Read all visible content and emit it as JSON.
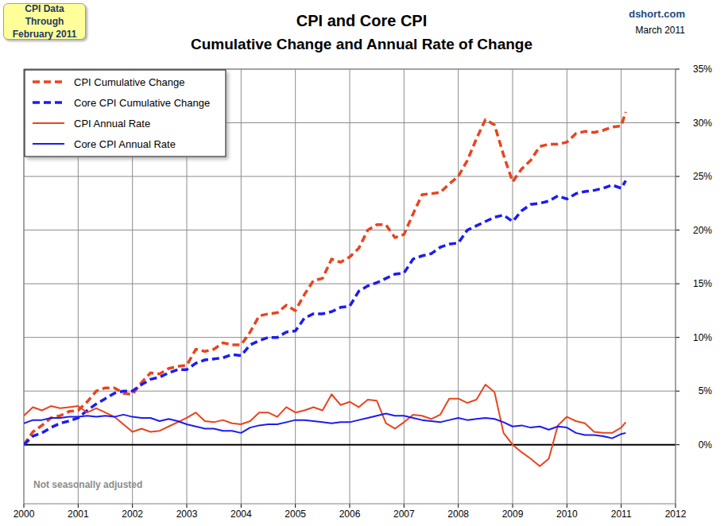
{
  "chart_data": {
    "type": "line",
    "title": "CPI and Core CPI",
    "subtitle": "Cumulative Change and Annual Rate of Change",
    "annotations": [
      "CPI Data Through February 2011",
      "dshort.com",
      "March 2011",
      "Not seasonally adjusted"
    ],
    "x": [
      2000,
      2000.167,
      2000.333,
      2000.5,
      2000.667,
      2000.833,
      2001,
      2001.167,
      2001.333,
      2001.5,
      2001.667,
      2001.833,
      2002,
      2002.167,
      2002.333,
      2002.5,
      2002.667,
      2002.833,
      2003,
      2003.167,
      2003.333,
      2003.5,
      2003.667,
      2003.833,
      2004,
      2004.167,
      2004.333,
      2004.5,
      2004.667,
      2004.833,
      2005,
      2005.167,
      2005.333,
      2005.5,
      2005.667,
      2005.833,
      2006,
      2006.167,
      2006.333,
      2006.5,
      2006.667,
      2006.833,
      2007,
      2007.167,
      2007.333,
      2007.5,
      2007.667,
      2007.833,
      2008,
      2008.167,
      2008.333,
      2008.5,
      2008.667,
      2008.833,
      2009,
      2009.167,
      2009.333,
      2009.5,
      2009.667,
      2009.833,
      2010,
      2010.167,
      2010.333,
      2010.5,
      2010.667,
      2010.833,
      2011,
      2011.083
    ],
    "series": [
      {
        "name": "CPI Cumulative Change",
        "color": "#e8441f",
        "line_style": "dashed",
        "values": [
          0,
          1.2,
          1.8,
          2.5,
          2.7,
          3.1,
          3.2,
          4.0,
          5.0,
          5.3,
          5.3,
          4.8,
          4.7,
          5.8,
          6.7,
          6.6,
          7.1,
          7.3,
          7.4,
          8.9,
          8.7,
          8.9,
          9.5,
          9.3,
          9.3,
          10.5,
          12.0,
          12.2,
          12.3,
          13.0,
          12.5,
          14.0,
          15.3,
          15.5,
          17.3,
          17.0,
          17.5,
          18.3,
          20.0,
          20.5,
          20.5,
          19.3,
          19.6,
          21.5,
          23.3,
          23.4,
          23.5,
          24.3,
          25.0,
          26.5,
          28.5,
          30.3,
          29.8,
          27.0,
          24.5,
          25.7,
          26.5,
          27.8,
          28.0,
          28.0,
          28.2,
          29.0,
          29.2,
          29.1,
          29.3,
          29.6,
          29.7,
          31.0
        ]
      },
      {
        "name": "Core CPI Cumulative Change",
        "color": "#1c1cf0",
        "line_style": "dashed",
        "values": [
          0,
          0.8,
          1.1,
          1.6,
          2.0,
          2.2,
          2.5,
          3.2,
          3.8,
          4.3,
          4.8,
          5.0,
          5.0,
          5.6,
          6.1,
          6.3,
          6.7,
          7.0,
          7.0,
          7.6,
          7.9,
          8.0,
          8.1,
          8.4,
          8.3,
          9.3,
          9.7,
          10.0,
          10.0,
          10.5,
          10.6,
          11.8,
          12.2,
          12.2,
          12.4,
          12.8,
          12.9,
          14.3,
          14.8,
          15.1,
          15.5,
          15.9,
          16.0,
          17.3,
          17.6,
          17.8,
          18.4,
          18.7,
          18.8,
          20.0,
          20.4,
          20.8,
          21.2,
          21.4,
          20.8,
          21.8,
          22.4,
          22.5,
          22.7,
          23.2,
          22.9,
          23.4,
          23.6,
          23.7,
          23.9,
          24.2,
          23.9,
          24.6
        ]
      },
      {
        "name": "CPI Annual Rate",
        "color": "#e8441f",
        "line_style": "solid",
        "values": [
          2.7,
          3.5,
          3.2,
          3.6,
          3.4,
          3.5,
          3.6,
          3.0,
          3.4,
          3.0,
          2.6,
          1.9,
          1.2,
          1.5,
          1.2,
          1.3,
          1.7,
          2.1,
          2.5,
          3.0,
          2.2,
          2.1,
          2.3,
          2.0,
          1.9,
          2.2,
          3.0,
          3.0,
          2.6,
          3.5,
          3.0,
          3.2,
          3.5,
          3.2,
          4.7,
          3.7,
          4.0,
          3.5,
          4.2,
          4.1,
          2.0,
          1.5,
          2.1,
          2.8,
          2.7,
          2.4,
          2.8,
          4.3,
          4.3,
          3.9,
          4.2,
          5.6,
          4.9,
          1.1,
          0.0,
          -0.7,
          -1.3,
          -2.0,
          -1.3,
          1.8,
          2.6,
          2.2,
          2.0,
          1.2,
          1.1,
          1.1,
          1.6,
          2.1
        ]
      },
      {
        "name": "Core CPI Annual Rate",
        "color": "#1c1cf0",
        "line_style": "solid",
        "values": [
          2.0,
          2.3,
          2.3,
          2.5,
          2.5,
          2.6,
          2.6,
          2.7,
          2.6,
          2.7,
          2.6,
          2.8,
          2.6,
          2.5,
          2.5,
          2.2,
          2.4,
          2.2,
          1.9,
          1.7,
          1.5,
          1.5,
          1.3,
          1.3,
          1.1,
          1.6,
          1.8,
          1.9,
          1.9,
          2.1,
          2.3,
          2.3,
          2.2,
          2.1,
          2.0,
          2.1,
          2.1,
          2.3,
          2.5,
          2.7,
          2.9,
          2.7,
          2.7,
          2.5,
          2.3,
          2.2,
          2.1,
          2.3,
          2.5,
          2.3,
          2.4,
          2.5,
          2.4,
          2.1,
          1.7,
          1.8,
          1.6,
          1.7,
          1.4,
          1.7,
          1.6,
          1.1,
          0.9,
          0.9,
          0.8,
          0.6,
          1.0,
          1.1
        ]
      }
    ],
    "xlim": [
      2000,
      2012
    ],
    "xticks": [
      2000,
      2001,
      2002,
      2003,
      2004,
      2005,
      2006,
      2007,
      2008,
      2009,
      2010,
      2011,
      2012
    ],
    "ylim": [
      -5.5,
      35
    ],
    "yticks": [
      {
        "value": 0,
        "label": "0%"
      },
      {
        "value": 5,
        "label": "5%"
      },
      {
        "value": 10,
        "label": "10%"
      },
      {
        "value": 15,
        "label": "15%"
      },
      {
        "value": 20,
        "label": "20%"
      },
      {
        "value": 25,
        "label": "25%"
      },
      {
        "value": 30,
        "label": "30%"
      },
      {
        "value": 35,
        "label": "35%"
      }
    ],
    "grid": true,
    "legend": "upper left"
  }
}
